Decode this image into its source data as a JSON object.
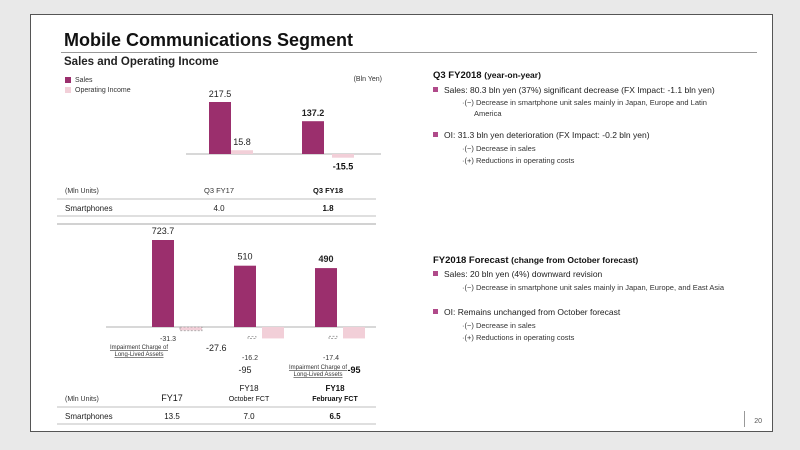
{
  "page": {
    "title": "Mobile Communications Segment",
    "chart_title": "Sales and Operating Income",
    "number": "20"
  },
  "colors": {
    "sales": "#9b2f6d",
    "operating_income": "#f2cfd8",
    "accent": "#b04a8a"
  },
  "legend": {
    "sales": "Sales",
    "operating_income": "Operating Income"
  },
  "chart_data": [
    {
      "type": "bar",
      "unit": "(Bln Yen)",
      "categories": [
        "Q3 FY17",
        "Q3 FY18"
      ],
      "series": [
        {
          "name": "Sales",
          "values": [
            217.5,
            137.2
          ],
          "labels": [
            "217.5",
            "137.2"
          ]
        },
        {
          "name": "Operating Income",
          "values": [
            15.8,
            -15.5
          ],
          "labels": [
            "15.8",
            "-15.5"
          ]
        }
      ],
      "table": {
        "header_label": "(Mln Units)",
        "row_label": "Smartphones",
        "values": [
          "4.0",
          "1.8"
        ]
      }
    },
    {
      "type": "bar",
      "categories": [
        "FY17",
        "FY18 October FCT",
        "FY18 February FCT"
      ],
      "category_labels": [
        {
          "line1": "",
          "line2": "FY17"
        },
        {
          "line1": "FY18",
          "line2": "October FCT"
        },
        {
          "line1": "FY18",
          "line2": "February FCT"
        }
      ],
      "series": [
        {
          "name": "Sales",
          "values": [
            723.7,
            510,
            490
          ],
          "labels": [
            "723.7",
            "510",
            "490"
          ]
        },
        {
          "name": "Operating Income",
          "values": [
            -27.6,
            -95,
            -95
          ],
          "labels": [
            "-27.6",
            "-95",
            "-95"
          ]
        }
      ],
      "impairments": [
        {
          "category": "FY17",
          "value": -31.3,
          "label": "-31.3"
        },
        {
          "category": "FY18 October FCT",
          "value": -16.2,
          "label": "-16.2"
        },
        {
          "category": "FY18 February FCT",
          "value": -17.4,
          "label": "-17.4"
        }
      ],
      "impairment_note_line1": "Impairment Charge of",
      "impairment_note_line2": "Long-Lived Assets",
      "table": {
        "header_label": "(Mln Units)",
        "row_label": "Smartphones",
        "values": [
          "13.5",
          "7.0",
          "6.5"
        ]
      }
    }
  ],
  "q3": {
    "heading": "Q3 FY2018",
    "heading_suffix": "(year-on-year)",
    "sales_bullet": "Sales: 80.3 bln yen (37%) significant decrease (FX Impact: -1.1 bln yen)",
    "sales_sub1": "·(−) Decrease in smartphone unit sales mainly in Japan, Europe and Latin",
    "sales_sub1_cont": "America",
    "oi_bullet": "OI: 31.3 bln yen deterioration (FX Impact: -0.2 bln yen)",
    "oi_sub1": "·(−) Decrease in sales",
    "oi_sub2": "·(+) Reductions in operating costs"
  },
  "fy": {
    "heading": "FY2018 Forecast",
    "heading_suffix": "(change from October forecast)",
    "sales_bullet": "Sales: 20 bln yen (4%) downward revision",
    "sales_sub1": "·(−) Decrease in smartphone unit sales mainly in Japan, Europe, and East Asia",
    "oi_bullet": "OI: Remains unchanged from October forecast",
    "oi_sub1": "·(−) Decrease in sales",
    "oi_sub2": "·(+) Reductions in operating costs"
  }
}
